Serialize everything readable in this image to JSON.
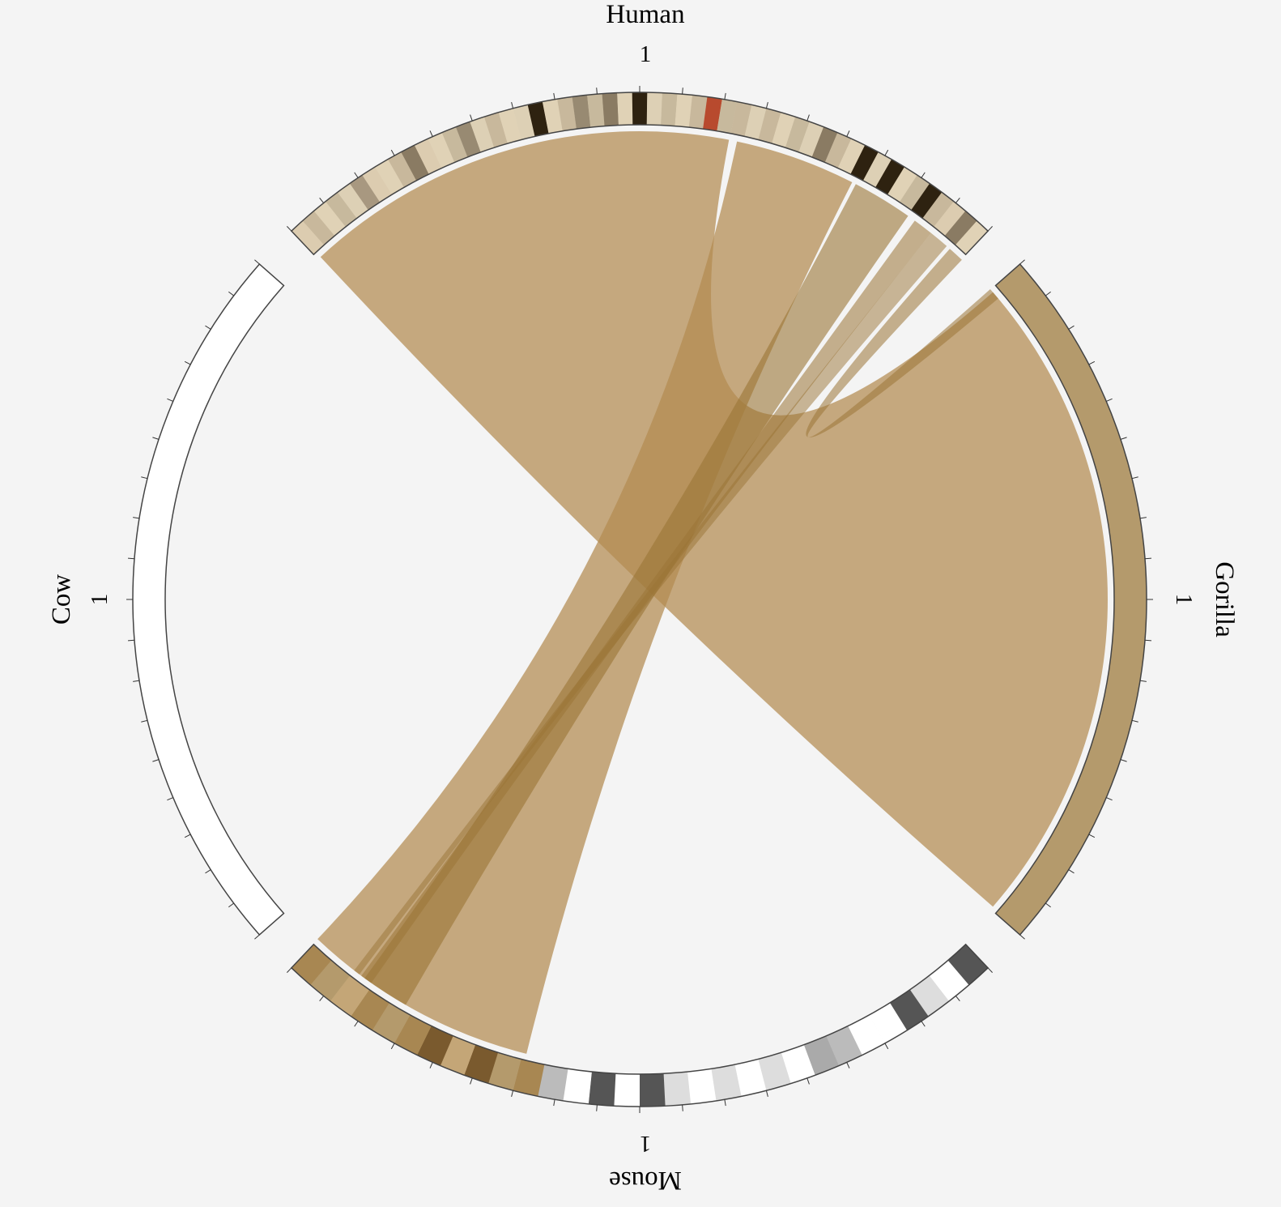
{
  "colors": {
    "background": "#f4f4f4",
    "ribbon": "#b38b50",
    "ribbon_dark": "#9a7436",
    "gorilla_segment": "#b49a6c",
    "cow_segment": "#ffffff",
    "segment_stroke": "#444444",
    "centromere": "#b84a2e"
  },
  "chromosomes": [
    {
      "id": "human",
      "label": "Human",
      "position_label": "1",
      "bands": [
        "#dcccb0",
        "#c8b89c",
        "#e0d2b6",
        "#c7b99d",
        "#ddd0b5",
        "#a89880",
        "#dcccb0",
        "#e0d2b6",
        "#c8b89c",
        "#8a7b63",
        "#dcccb0",
        "#e0d2b6",
        "#c7b99d",
        "#988a72",
        "#ddd0b5",
        "#c8b89c",
        "#e0d2b6",
        "#ddd0b5",
        "#2e2210",
        "#e0d2b6",
        "#c8b89c",
        "#988a72",
        "#c7b99d",
        "#8a7b63",
        "#e0d2b6",
        "#2e2210",
        "#ddd0b5",
        "#c7b99d",
        "#e0d2b6",
        "#c8b89c",
        "#b84a2e",
        "#c7b99d",
        "#c8b89c",
        "#ddd0b5",
        "#c8b89c",
        "#e0d2b6",
        "#c7b99d",
        "#ddd0b5",
        "#8a7b63",
        "#c8b89c",
        "#e0d2b6",
        "#2e2210",
        "#ddd0b5",
        "#2e2210",
        "#e0d2b6",
        "#c7b99d",
        "#2e2210",
        "#c8b89c",
        "#dcccb0",
        "#8a7b63",
        "#e0d2b6"
      ]
    },
    {
      "id": "gorilla",
      "label": "Gorilla",
      "position_label": "1",
      "bands": [
        "#b49a6c"
      ]
    },
    {
      "id": "mouse",
      "label": "Mouse",
      "position_label": "1",
      "bands": [
        "#555555",
        "#ffffff",
        "#dddddd",
        "#555555",
        "#ffffff",
        "#ffffff",
        "#bbbbbb",
        "#aaaaaa",
        "#ffffff",
        "#dddddd",
        "#ffffff",
        "#dddddd",
        "#ffffff",
        "#dddddd",
        "#555555",
        "#ffffff",
        "#555555",
        "#ffffff",
        "#bbbbbb",
        "#a88752",
        "#b49a6c",
        "#7a5a2e",
        "#c4a677",
        "#7a5a2e",
        "#a88752",
        "#b49a6c",
        "#a88752",
        "#c4a677",
        "#b49a6c",
        "#a88752"
      ]
    },
    {
      "id": "cow",
      "label": "Cow",
      "position_label": "1",
      "bands": [
        "#ffffff"
      ]
    }
  ],
  "links": [
    {
      "from": "human",
      "to": "gorilla",
      "weight": "large"
    },
    {
      "from": "human",
      "to": "mouse",
      "weight": "large"
    },
    {
      "from": "human",
      "to": "mouse",
      "weight": "medium"
    },
    {
      "from": "human",
      "to": "mouse",
      "weight": "narrow"
    },
    {
      "from": "human",
      "to": "mouse",
      "weight": "narrow"
    },
    {
      "from": "human",
      "to": "gorilla",
      "weight": "narrow"
    }
  ]
}
